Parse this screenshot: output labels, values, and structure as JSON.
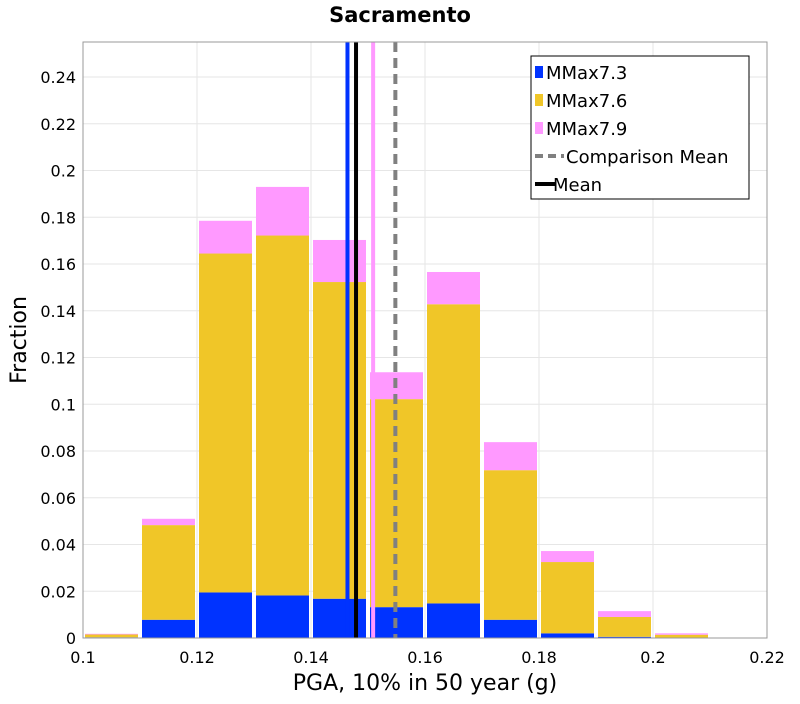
{
  "chart_data": {
    "type": "bar",
    "title": "Sacramento",
    "xlabel": "PGA, 10% in 50 year (g)",
    "ylabel": "Fraction",
    "xlim": [
      0.1,
      0.22
    ],
    "ylim": [
      0,
      0.255
    ],
    "grid": true,
    "legend_position": "top-right",
    "x_ticks": [
      "0.1",
      "0.12",
      "0.14",
      "0.16",
      "0.18",
      "0.2",
      "0.22"
    ],
    "y_ticks": [
      "0",
      "0.02",
      "0.04",
      "0.06",
      "0.08",
      "0.1",
      "0.12",
      "0.14",
      "0.16",
      "0.18",
      "0.2",
      "0.22",
      "0.24"
    ],
    "bins": [
      {
        "x0": 0.1,
        "x1": 0.11
      },
      {
        "x0": 0.11,
        "x1": 0.12
      },
      {
        "x0": 0.12,
        "x1": 0.13
      },
      {
        "x0": 0.13,
        "x1": 0.14
      },
      {
        "x0": 0.14,
        "x1": 0.15
      },
      {
        "x0": 0.15,
        "x1": 0.16
      },
      {
        "x0": 0.16,
        "x1": 0.17
      },
      {
        "x0": 0.17,
        "x1": 0.18
      },
      {
        "x0": 0.18,
        "x1": 0.19
      },
      {
        "x0": 0.19,
        "x1": 0.2
      },
      {
        "x0": 0.2,
        "x1": 0.21
      },
      {
        "x0": 0.21,
        "x1": 0.22
      }
    ],
    "series": [
      {
        "name": "MMax7.3",
        "color": "#0033ff",
        "values": [
          0.0003,
          0.0078,
          0.0195,
          0.0182,
          0.0168,
          0.0132,
          0.0148,
          0.0078,
          0.002,
          0.0005,
          0.0002,
          0.0
        ]
      },
      {
        "name": "MMax7.6",
        "color": "#f0c628",
        "values": [
          0.0012,
          0.0405,
          0.145,
          0.154,
          0.1355,
          0.089,
          0.128,
          0.064,
          0.0305,
          0.0085,
          0.0012,
          0.0
        ]
      },
      {
        "name": "MMax7.9",
        "color": "#ff99ff",
        "values": [
          0.0003,
          0.0027,
          0.014,
          0.0208,
          0.018,
          0.0115,
          0.0138,
          0.012,
          0.0047,
          0.0025,
          0.0006,
          0.0
        ]
      }
    ],
    "vertical_lines": [
      {
        "series": "MMax7.3",
        "x": 0.1464,
        "color": "#0033ff",
        "style": "solid"
      },
      {
        "series": "MMax7.9",
        "x": 0.1509,
        "color": "#ff99ff",
        "style": "solid"
      },
      {
        "series": "Comparison Mean",
        "x": 0.1548,
        "color": "#808080",
        "style": "dashed"
      },
      {
        "series": "Mean",
        "x": 0.1479,
        "color": "#000000",
        "style": "solid"
      }
    ],
    "legend": [
      {
        "label": "MMax7.3",
        "kind": "box",
        "color": "#0033ff"
      },
      {
        "label": "MMax7.6",
        "kind": "box",
        "color": "#f0c628"
      },
      {
        "label": "MMax7.9",
        "kind": "box",
        "color": "#ff99ff"
      },
      {
        "label": "Comparison Mean",
        "kind": "dashed",
        "color": "#808080"
      },
      {
        "label": "Mean",
        "kind": "line",
        "color": "#000000"
      }
    ]
  }
}
